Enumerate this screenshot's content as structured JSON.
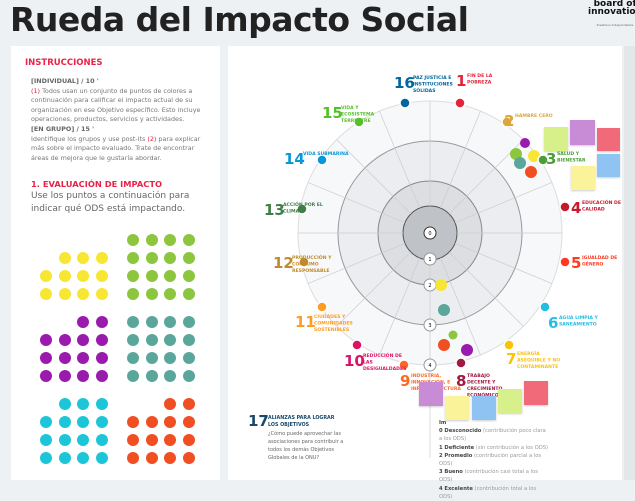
{
  "title": "Rueda del Impacto Social",
  "logo": {
    "line1": "board of",
    "line2": "innovation",
    "tag": "Kreativos Independiente"
  },
  "instructions": {
    "heading": "INSTRUCCIONES",
    "individual": "[INDIVIDUAL] / 10 '",
    "step1_num": "(1)",
    "step1": " Todos usan un conjunto de puntos de colores a continuación para calificar el impacto actual de su organización en ese Objetivo específico. Esto incluye operaciones, productos, servicios y actividades.",
    "group": "[EN GRUPO] / 15 '",
    "step2a": "Identifique los grupos y use post-its ",
    "step2_num": "(2)",
    "step2b": " para explicar más sobre el impacto evaluado. Trate de encontrar áreas de mejora que le gustaría abordar."
  },
  "section": {
    "heading": "1. EVALUACIÓN DE IMPACTO",
    "text": "Use los puntos a continuación para indicar qué ODS está impactando."
  },
  "dot_groups": [
    {
      "color": "#f7e733",
      "count": 11
    },
    {
      "color": "#8cc63f",
      "count": 16
    },
    {
      "color": "#9a1aad",
      "count": 14
    },
    {
      "color": "#5ba69a",
      "count": 16
    },
    {
      "color": "#1cc6d8",
      "count": 15
    },
    {
      "color": "#f04e23",
      "count": 14
    }
  ],
  "wheel": {
    "scale": [
      "0",
      "1",
      "2",
      "3",
      "4"
    ],
    "goals": [
      {
        "n": "1",
        "label": "FIN DE LA POBREZA",
        "color": "#e5243b"
      },
      {
        "n": "2",
        "label": "HAMBRE CERO",
        "color": "#dda63a"
      },
      {
        "n": "3",
        "label": "SALUD Y BIENESTAR",
        "color": "#4c9f38"
      },
      {
        "n": "4",
        "label": "EDUCACIÓN DE CALIDAD",
        "color": "#c5192d"
      },
      {
        "n": "5",
        "label": "IGUALDAD DE GÉNERO",
        "color": "#ff3a21"
      },
      {
        "n": "6",
        "label": "AGUA LIMPIA Y SANEAMIENTO",
        "color": "#26bde2"
      },
      {
        "n": "7",
        "label": "ENERGÍA ASEQUIBLE Y NO CONTAMINANTE",
        "color": "#fcc30b"
      },
      {
        "n": "8",
        "label": "TRABAJO DECENTE Y CRECIMIENTO ECONÓMICO",
        "color": "#a21942"
      },
      {
        "n": "9",
        "label": "INDUSTRIA, INNOVACIÓN, E INFRAESTRUCTURA",
        "color": "#fd6925"
      },
      {
        "n": "10",
        "label": "REDUCCIÓN DE LAS DESIGUALDADES",
        "color": "#dd1367"
      },
      {
        "n": "11",
        "label": "CIUDADES Y COMUNIDADES SOSTENIBLES",
        "color": "#fd9d24"
      },
      {
        "n": "12",
        "label": "PRODUCCIÓN Y CONSUMO RESPONSABLE",
        "color": "#bf8b2e"
      },
      {
        "n": "13",
        "label": "ACCIÓN POR EL CLIMA",
        "color": "#3f7e44"
      },
      {
        "n": "14",
        "label": "VIDA SUBMARINA",
        "color": "#0a97d9"
      },
      {
        "n": "15",
        "label": "VIDA Y ECOSISTEMA TERRESTRE",
        "color": "#56c02b"
      },
      {
        "n": "16",
        "label": "PAZ JUSTICIA E INSTITUCIONES SÓLIDAS",
        "color": "#00689d"
      }
    ]
  },
  "goal17": {
    "n": "17",
    "label": "ALIANZAS PARA LOGRAR LOS OBJETIVOS",
    "color": "#19486a",
    "question": "¿Cómo puede aprovechar las asociaciones para contribuir a todos los demás Objetivos Globales de la ONU?"
  },
  "legend": {
    "title": "Im",
    "items": [
      {
        "k": "0 Desconocido",
        "v": " (contribución poco clara a los ODS)"
      },
      {
        "k": "1 Deficiente",
        "v": " (sin contribución a los ODS)"
      },
      {
        "k": "2 Promedio",
        "v": " (contribución parcial a los ODS)"
      },
      {
        "k": "3 Bueno",
        "v": " (contribución casi total a los ODS)"
      },
      {
        "k": "4 Excelente",
        "v": " (contribución total a los ODS)"
      }
    ]
  }
}
